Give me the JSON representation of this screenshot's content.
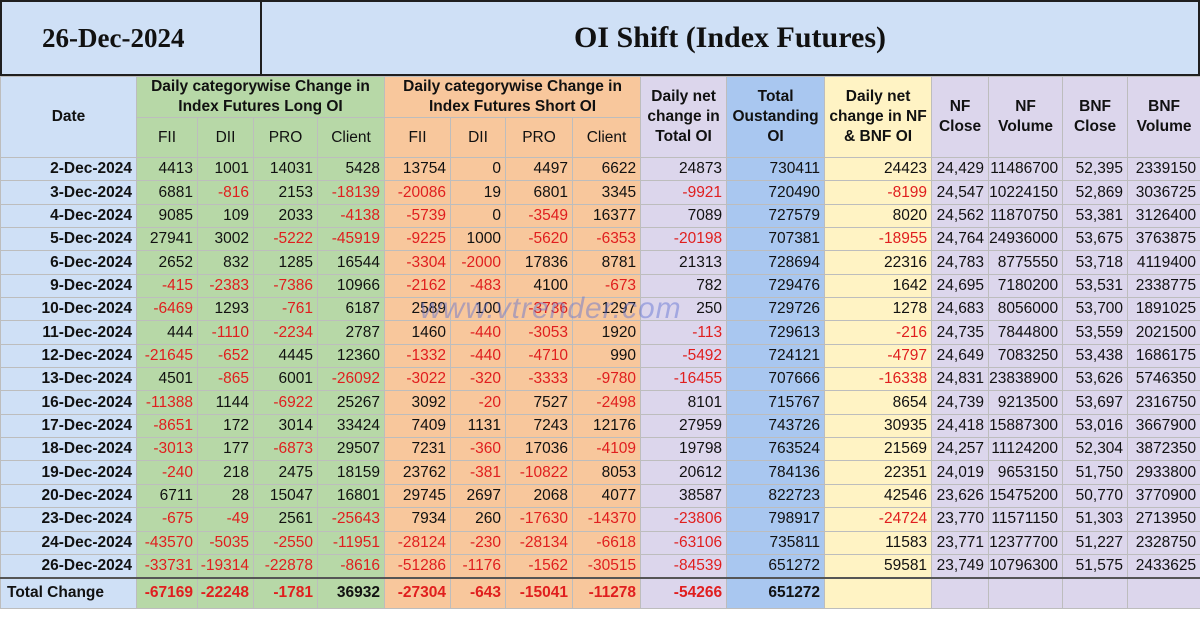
{
  "header": {
    "date": "26-Dec-2024",
    "title": "OI Shift (Index Futures)"
  },
  "columns": {
    "date": "Date",
    "long_group": "Daily categorywise Change in Index Futures Long OI",
    "short_group": "Daily categorywise Change in Index Futures Short OI",
    "fii": "FII",
    "dii": "DII",
    "pro": "PRO",
    "client": "Client",
    "net_change": "Daily net change in Total OI",
    "total_oi": "Total Oustanding OI",
    "nf_bnf_net": "Daily net change in NF & BNF OI",
    "nf_close": "NF Close",
    "nf_volume": "NF Volume",
    "bnf_close": "BNF Close",
    "bnf_volume": "BNF Volume"
  },
  "rows": [
    [
      "2-Dec-2024",
      "4413",
      "1001",
      "14031",
      "5428",
      "13754",
      "0",
      "4497",
      "6622",
      "24873",
      "730411",
      "24423",
      "24,429",
      "11486700",
      "52,395",
      "2339150"
    ],
    [
      "3-Dec-2024",
      "6881",
      "-816",
      "2153",
      "-18139",
      "-20086",
      "19",
      "6801",
      "3345",
      "-9921",
      "720490",
      "-8199",
      "24,547",
      "10224150",
      "52,869",
      "3036725"
    ],
    [
      "4-Dec-2024",
      "9085",
      "109",
      "2033",
      "-4138",
      "-5739",
      "0",
      "-3549",
      "16377",
      "7089",
      "727579",
      "8020",
      "24,562",
      "11870750",
      "53,381",
      "3126400"
    ],
    [
      "5-Dec-2024",
      "27941",
      "3002",
      "-5222",
      "-45919",
      "-9225",
      "1000",
      "-5620",
      "-6353",
      "-20198",
      "707381",
      "-18955",
      "24,764",
      "24936000",
      "53,675",
      "3763875"
    ],
    [
      "6-Dec-2024",
      "2652",
      "832",
      "1285",
      "16544",
      "-3304",
      "-2000",
      "17836",
      "8781",
      "21313",
      "728694",
      "22316",
      "24,783",
      "8775550",
      "53,718",
      "4119400"
    ],
    [
      "9-Dec-2024",
      "-415",
      "-2383",
      "-7386",
      "10966",
      "-2162",
      "-483",
      "4100",
      "-673",
      "782",
      "729476",
      "1642",
      "24,695",
      "7180200",
      "53,531",
      "2338775"
    ],
    [
      "10-Dec-2024",
      "-6469",
      "1293",
      "-761",
      "6187",
      "2589",
      "100",
      "-3736",
      "1297",
      "250",
      "729726",
      "1278",
      "24,683",
      "8056000",
      "53,700",
      "1891025"
    ],
    [
      "11-Dec-2024",
      "444",
      "-1110",
      "-2234",
      "2787",
      "1460",
      "-440",
      "-3053",
      "1920",
      "-113",
      "729613",
      "-216",
      "24,735",
      "7844800",
      "53,559",
      "2021500"
    ],
    [
      "12-Dec-2024",
      "-21645",
      "-652",
      "4445",
      "12360",
      "-1332",
      "-440",
      "-4710",
      "990",
      "-5492",
      "724121",
      "-4797",
      "24,649",
      "7083250",
      "53,438",
      "1686175"
    ],
    [
      "13-Dec-2024",
      "4501",
      "-865",
      "6001",
      "-26092",
      "-3022",
      "-320",
      "-3333",
      "-9780",
      "-16455",
      "707666",
      "-16338",
      "24,831",
      "23838900",
      "53,626",
      "5746350"
    ],
    [
      "16-Dec-2024",
      "-11388",
      "1144",
      "-6922",
      "25267",
      "3092",
      "-20",
      "7527",
      "-2498",
      "8101",
      "715767",
      "8654",
      "24,739",
      "9213500",
      "53,697",
      "2316750"
    ],
    [
      "17-Dec-2024",
      "-8651",
      "172",
      "3014",
      "33424",
      "7409",
      "1131",
      "7243",
      "12176",
      "27959",
      "743726",
      "30935",
      "24,418",
      "15887300",
      "53,016",
      "3667900"
    ],
    [
      "18-Dec-2024",
      "-3013",
      "177",
      "-6873",
      "29507",
      "7231",
      "-360",
      "17036",
      "-4109",
      "19798",
      "763524",
      "21569",
      "24,257",
      "11124200",
      "52,304",
      "3872350"
    ],
    [
      "19-Dec-2024",
      "-240",
      "218",
      "2475",
      "18159",
      "23762",
      "-381",
      "-10822",
      "8053",
      "20612",
      "784136",
      "22351",
      "24,019",
      "9653150",
      "51,750",
      "2933800"
    ],
    [
      "20-Dec-2024",
      "6711",
      "28",
      "15047",
      "16801",
      "29745",
      "2697",
      "2068",
      "4077",
      "38587",
      "822723",
      "42546",
      "23,626",
      "15475200",
      "50,770",
      "3770900"
    ],
    [
      "23-Dec-2024",
      "-675",
      "-49",
      "2561",
      "-25643",
      "7934",
      "260",
      "-17630",
      "-14370",
      "-23806",
      "798917",
      "-24724",
      "23,770",
      "11571150",
      "51,303",
      "2713950"
    ],
    [
      "24-Dec-2024",
      "-43570",
      "-5035",
      "-2550",
      "-11951",
      "-28124",
      "-230",
      "-28134",
      "-6618",
      "-63106",
      "735811",
      "11583",
      "23,771",
      "12377700",
      "51,227",
      "2328750"
    ],
    [
      "26-Dec-2024",
      "-33731",
      "-19314",
      "-22878",
      "-8616",
      "-51286",
      "-1176",
      "-1562",
      "-30515",
      "-84539",
      "651272",
      "59581",
      "23,749",
      "10796300",
      "51,575",
      "2433625"
    ]
  ],
  "total": {
    "label": "Total Change",
    "values": [
      "-67169",
      "-22248",
      "-1781",
      "36932",
      "-27304",
      "-643",
      "-15041",
      "-11278",
      "-54266",
      "651272"
    ]
  },
  "watermark": "www.vtrender.com",
  "colors": {
    "long_bg": "#b7d8a7",
    "short_bg": "#f8c79c",
    "stat_bg": "#dcd6ec",
    "total_oi_bg": "#a9c7f0",
    "nf_bnf_bg": "#fff3c4",
    "header_bg": "#cfe0f6",
    "negative": "#e01e1e"
  }
}
